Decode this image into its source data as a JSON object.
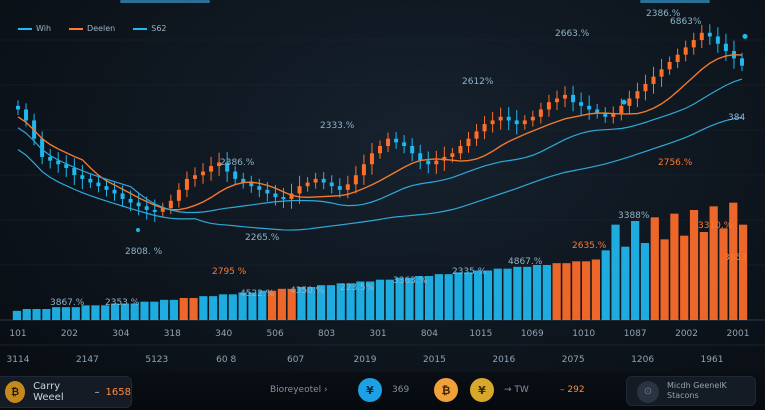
{
  "legend": [
    {
      "label": "Wih",
      "color": "#1fb8f0"
    },
    {
      "label": "Deelen",
      "color": "#ff7a2e"
    },
    {
      "label": "S62",
      "color": "#1fb8f0"
    }
  ],
  "colors": {
    "blue": "#1fb8f0",
    "orange": "#ff6f2a",
    "line_orange": "#f07a2e",
    "line_blue": "#2fa8d8"
  },
  "chart_data": {
    "type": "candlestick+bar",
    "x_axis_top": [
      "101",
      "202",
      "304",
      "318",
      "340",
      "506",
      "803",
      "301",
      "804",
      "1015",
      "1069",
      "1010",
      "1087",
      "2002",
      "2001"
    ],
    "x_axis_bottom": [
      "3114",
      "2147",
      "5123",
      "60 8",
      "607",
      "2019",
      "2015",
      "2016",
      "2075",
      "1206",
      "1961"
    ],
    "annotations": [
      {
        "text": "2386.%",
        "color": "blue"
      },
      {
        "text": "2612%",
        "color": "blue"
      },
      {
        "text": "2663.%",
        "color": "blue"
      },
      {
        "text": "2333.%",
        "color": "blue"
      },
      {
        "text": "2265.%",
        "color": "blue"
      },
      {
        "text": "2808. %",
        "color": "blue"
      },
      {
        "text": "2386.%",
        "color": "blue"
      },
      {
        "text": "6863%",
        "color": "blue"
      },
      {
        "text": "2756.%",
        "color": "orange"
      },
      {
        "text": "3388%",
        "color": "blue"
      },
      {
        "text": "3310.%",
        "color": "orange"
      },
      {
        "text": "2795 %",
        "color": "orange"
      },
      {
        "text": "2635.%",
        "color": "orange"
      },
      {
        "text": "2335 %",
        "color": "blue"
      },
      {
        "text": "4867.%",
        "color": "blue"
      },
      {
        "text": "3363.%",
        "color": "blue"
      },
      {
        "text": "223.5%",
        "color": "blue"
      },
      {
        "text": "4350.%",
        "color": "blue"
      },
      {
        "text": "4522.%",
        "color": "blue"
      },
      {
        "text": "2353 %",
        "color": "blue"
      },
      {
        "text": "3867.%",
        "color": "blue"
      },
      {
        "text": "3853",
        "color": "orange"
      },
      {
        "text": "384",
        "color": "blue"
      }
    ],
    "candles_close": [
      86,
      80,
      70,
      60,
      58,
      56,
      54,
      50,
      48,
      46,
      44,
      42,
      40,
      37,
      35,
      33,
      31,
      30,
      32,
      36,
      42,
      48,
      50,
      52,
      55,
      57,
      52,
      48,
      46,
      44,
      42,
      40,
      38,
      37,
      40,
      44,
      46,
      48,
      46,
      44,
      42,
      45,
      50,
      56,
      62,
      66,
      70,
      68,
      66,
      62,
      58,
      56,
      58,
      60,
      62,
      66,
      70,
      74,
      78,
      80,
      82,
      80,
      78,
      80,
      82,
      86,
      90,
      92,
      94,
      90,
      88,
      86,
      84,
      82,
      84,
      88,
      92,
      96,
      100,
      104,
      108,
      112,
      116,
      120,
      124,
      128,
      126,
      122,
      118,
      114,
      110
    ],
    "volume": [
      5,
      6,
      6,
      6,
      7,
      7,
      7,
      8,
      8,
      8,
      9,
      9,
      9,
      10,
      10,
      11,
      11,
      12,
      12,
      13,
      13,
      14,
      14,
      15,
      15,
      16,
      16,
      17,
      17,
      18,
      18,
      19,
      19,
      20,
      20,
      21,
      21,
      22,
      22,
      23,
      23,
      24,
      24,
      25,
      25,
      26,
      26,
      27,
      27,
      28,
      28,
      29,
      29,
      30,
      30,
      31,
      31,
      32,
      32,
      33,
      33,
      34,
      34,
      35,
      35,
      36,
      36,
      37,
      37,
      38,
      38,
      39,
      39,
      40,
      40
    ],
    "volume_orange_idx": [
      17,
      18,
      26,
      27,
      28,
      55,
      56,
      57,
      58,
      59,
      65,
      66,
      67,
      68,
      69,
      70,
      71,
      72,
      73,
      74
    ]
  },
  "footer": {
    "left_label": "Carry Weeel",
    "left_value": "1658",
    "left_arrow": "–",
    "mid_label": "Bioreyeotel",
    "val1": "369",
    "val2": "TW",
    "val3": "292",
    "right_line1": "Micdh GeenelK",
    "right_line2": "Stacons"
  }
}
